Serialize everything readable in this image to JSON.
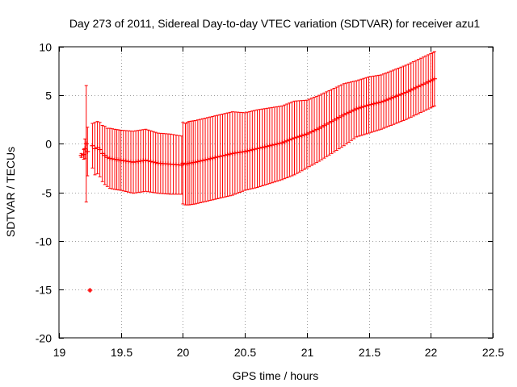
{
  "chart_data": {
    "type": "scatter",
    "title": "Day 273 of 2011, Sidereal Day-to-day VTEC variation (SDTVAR) for receiver azu1",
    "xlabel": "GPS time / hours",
    "ylabel": "SDTVAR / TECUs",
    "xlim": [
      19,
      22.5
    ],
    "ylim": [
      -20,
      10
    ],
    "xticks": [
      19,
      19.5,
      20,
      20.5,
      21,
      21.5,
      22,
      22.5
    ],
    "xtick_labels": [
      "19",
      "19.5",
      "20",
      "20.5",
      "21",
      "21.5",
      "22",
      "22.5"
    ],
    "yticks": [
      -20,
      -15,
      -10,
      -5,
      0,
      5,
      10
    ],
    "ytick_labels": [
      "-20",
      "-15",
      "-10",
      "-5",
      "0",
      "5",
      "10"
    ],
    "grid": true,
    "color": "#ff0000",
    "series": [
      {
        "name": "SDTVAR",
        "marker": "plus",
        "errorbars": true,
        "x": [
          19.18,
          19.2,
          19.21,
          19.22,
          19.23,
          19.25,
          19.27,
          19.29,
          19.31,
          19.33,
          19.35,
          19.37,
          19.39,
          19.41,
          19.45,
          19.5,
          19.6,
          19.7,
          19.8,
          19.9,
          19.99,
          20.0,
          20.02,
          20.05,
          20.1,
          20.2,
          20.3,
          20.4,
          20.5,
          20.6,
          20.7,
          20.8,
          20.9,
          21.0,
          21.1,
          21.2,
          21.3,
          21.4,
          21.5,
          21.6,
          21.7,
          21.8,
          21.9,
          22.0,
          22.03
        ],
        "y": [
          -1.2,
          -1.1,
          -0.5,
          0.0,
          -0.8,
          -15.1,
          -0.2,
          -0.5,
          -0.4,
          -0.6,
          -1.0,
          -1.2,
          -1.4,
          -1.5,
          -1.6,
          -1.7,
          -1.9,
          -1.7,
          -2.0,
          -2.1,
          -2.2,
          -2.0,
          -2.1,
          -2.0,
          -1.9,
          -1.6,
          -1.3,
          -1.0,
          -0.8,
          -0.5,
          -0.2,
          0.1,
          0.6,
          1.0,
          1.6,
          2.3,
          3.0,
          3.6,
          4.0,
          4.3,
          4.8,
          5.3,
          5.9,
          6.5,
          6.7
        ],
        "yerr": [
          0.2,
          0.5,
          1.0,
          6.0,
          2.5,
          0.1,
          2.3,
          2.7,
          2.7,
          2.8,
          2.9,
          3.0,
          3.0,
          3.1,
          3.1,
          3.1,
          3.2,
          3.2,
          3.1,
          3.1,
          3.0,
          4.2,
          4.2,
          4.3,
          4.3,
          4.3,
          4.3,
          4.3,
          4.0,
          4.0,
          3.9,
          3.8,
          3.8,
          3.5,
          3.4,
          3.3,
          3.2,
          2.9,
          2.9,
          2.8,
          2.8,
          2.8,
          2.8,
          2.8,
          2.8
        ]
      }
    ]
  }
}
